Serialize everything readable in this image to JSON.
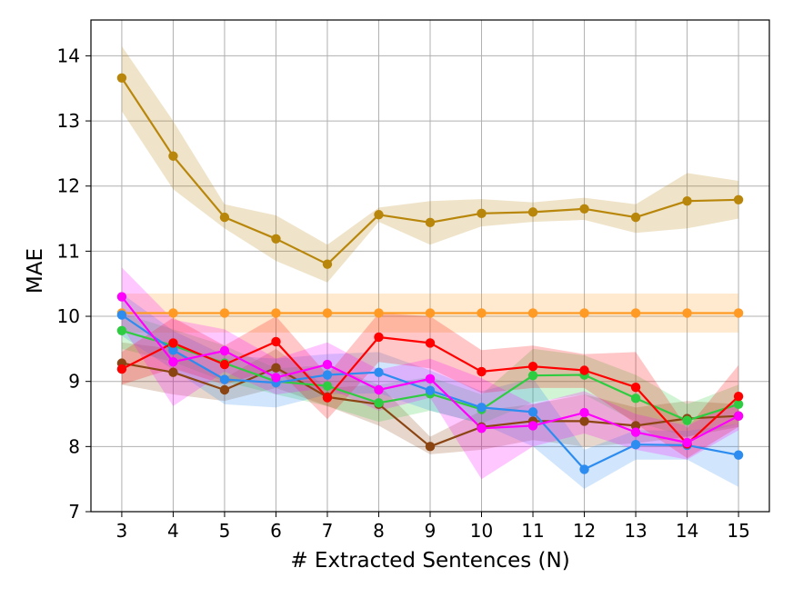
{
  "chart_data": {
    "type": "line",
    "title": "",
    "xlabel": "# Extracted Sentences (N)",
    "ylabel": "MAE",
    "xlim": [
      2.4,
      15.6
    ],
    "ylim": [
      7,
      14.55
    ],
    "grid": true,
    "legend": "none",
    "x": [
      3,
      4,
      5,
      6,
      7,
      8,
      9,
      10,
      11,
      12,
      13,
      14,
      15
    ],
    "xticks": [
      "3",
      "4",
      "5",
      "6",
      "7",
      "8",
      "9",
      "10",
      "11",
      "12",
      "13",
      "14",
      "15"
    ],
    "yticks": [
      "7",
      "8",
      "9",
      "10",
      "11",
      "12",
      "13",
      "14"
    ],
    "series": [
      {
        "name": "series-orange",
        "color": "#ff9a25",
        "values": [
          10.05,
          10.05,
          10.05,
          10.05,
          10.05,
          10.05,
          10.05,
          10.05,
          10.05,
          10.05,
          10.05,
          10.05,
          10.05
        ],
        "lower": [
          9.75,
          9.75,
          9.75,
          9.75,
          9.75,
          9.75,
          9.75,
          9.75,
          9.75,
          9.75,
          9.75,
          9.75,
          9.75
        ],
        "upper": [
          10.35,
          10.35,
          10.35,
          10.35,
          10.35,
          10.35,
          10.35,
          10.35,
          10.35,
          10.35,
          10.35,
          10.35,
          10.35
        ]
      },
      {
        "name": "series-gold",
        "color": "#b8860b",
        "values": [
          13.66,
          12.46,
          11.52,
          11.19,
          10.8,
          11.56,
          11.44,
          11.58,
          11.6,
          11.65,
          11.52,
          11.77,
          11.79
        ],
        "lower": [
          13.15,
          11.95,
          11.35,
          10.85,
          10.52,
          11.45,
          11.1,
          11.38,
          11.45,
          11.48,
          11.28,
          11.35,
          11.5
        ],
        "upper": [
          14.15,
          13.0,
          11.72,
          11.55,
          11.1,
          11.67,
          11.77,
          11.8,
          11.75,
          11.82,
          11.72,
          12.2,
          12.08
        ]
      },
      {
        "name": "series-brown",
        "color": "#8b4513",
        "values": [
          9.28,
          9.14,
          8.87,
          9.21,
          8.76,
          8.65,
          8.0,
          8.3,
          8.39,
          8.39,
          8.32,
          8.43,
          8.47
        ],
        "lower": [
          8.95,
          8.8,
          8.7,
          8.9,
          8.62,
          8.32,
          7.88,
          7.95,
          8.1,
          8.0,
          8.05,
          8.15,
          8.3
        ],
        "upper": [
          9.6,
          9.5,
          9.05,
          9.5,
          8.9,
          8.95,
          8.15,
          8.55,
          8.65,
          8.8,
          8.6,
          8.7,
          8.65
        ]
      },
      {
        "name": "series-green",
        "color": "#2ecc40",
        "values": [
          9.78,
          9.55,
          9.28,
          9.0,
          8.93,
          8.67,
          8.81,
          8.57,
          9.09,
          9.1,
          8.74,
          8.4,
          8.65
        ],
        "lower": [
          9.5,
          9.3,
          9.0,
          8.8,
          8.62,
          8.38,
          8.55,
          8.35,
          8.68,
          8.8,
          8.38,
          8.15,
          8.35
        ],
        "upper": [
          10.05,
          9.8,
          9.55,
          9.2,
          9.25,
          8.95,
          9.07,
          8.8,
          9.5,
          9.4,
          9.1,
          8.65,
          8.95
        ]
      },
      {
        "name": "series-blue",
        "color": "#2d8cf0",
        "values": [
          10.02,
          9.48,
          9.03,
          8.98,
          9.1,
          9.14,
          8.86,
          8.6,
          8.53,
          7.65,
          8.03,
          8.02,
          7.87
        ],
        "lower": [
          9.7,
          9.18,
          8.65,
          8.6,
          8.8,
          8.82,
          8.55,
          8.35,
          8.0,
          7.35,
          7.8,
          7.8,
          7.38
        ],
        "upper": [
          10.35,
          9.78,
          9.4,
          9.35,
          9.42,
          9.45,
          9.17,
          8.85,
          9.05,
          7.95,
          8.25,
          8.24,
          8.35
        ]
      },
      {
        "name": "series-red",
        "color": "#ff0000",
        "values": [
          9.19,
          9.59,
          9.26,
          9.61,
          8.75,
          9.68,
          9.59,
          9.15,
          9.23,
          9.17,
          8.91,
          8.04,
          8.77
        ],
        "lower": [
          8.95,
          9.2,
          8.95,
          9.2,
          8.42,
          9.3,
          9.2,
          8.82,
          8.9,
          8.9,
          8.35,
          7.82,
          8.3
        ],
        "upper": [
          9.45,
          9.98,
          9.55,
          10.0,
          9.1,
          10.05,
          10.0,
          9.48,
          9.55,
          9.42,
          9.45,
          8.28,
          9.25
        ]
      },
      {
        "name": "series-magenta",
        "color": "#ff00ff",
        "values": [
          10.3,
          9.3,
          9.47,
          9.06,
          9.26,
          8.87,
          9.04,
          8.28,
          8.32,
          8.52,
          8.22,
          8.06,
          8.47
        ],
        "lower": [
          9.85,
          8.62,
          9.15,
          8.8,
          8.9,
          8.55,
          8.75,
          7.5,
          8.0,
          8.2,
          7.95,
          7.8,
          8.25
        ],
        "upper": [
          10.75,
          9.95,
          9.8,
          9.35,
          9.6,
          9.18,
          9.35,
          9.05,
          8.65,
          8.85,
          8.5,
          8.32,
          8.7
        ]
      }
    ]
  }
}
